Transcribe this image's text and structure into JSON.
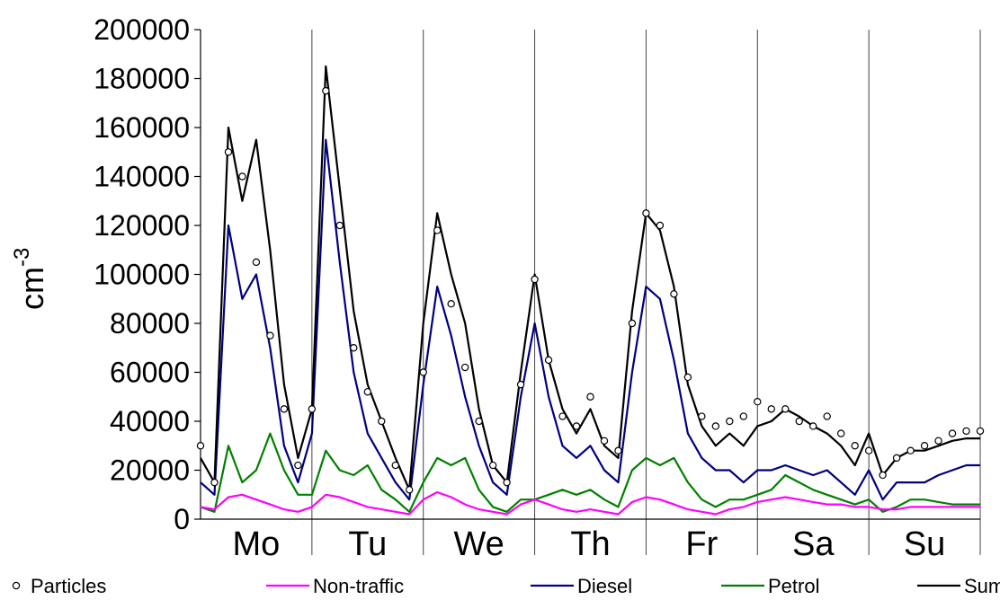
{
  "chart_data": {
    "type": "line",
    "ylabel": "cm",
    "ylabel_exponent": "-3",
    "ylim": [
      0,
      200000
    ],
    "yticks": [
      "0",
      "20000",
      "40000",
      "60000",
      "80000",
      "100000",
      "120000",
      "140000",
      "160000",
      "180000",
      "200000"
    ],
    "xlim": [
      0,
      7
    ],
    "categories": [
      "Mo",
      "Tu",
      "We",
      "Th",
      "Fr",
      "Sa",
      "Su"
    ],
    "grid": "vertical day separators",
    "legend_position": "bottom",
    "x": [
      0,
      0.125,
      0.25,
      0.375,
      0.5,
      0.625,
      0.75,
      0.875,
      1,
      1.125,
      1.25,
      1.375,
      1.5,
      1.625,
      1.75,
      1.875,
      2,
      2.125,
      2.25,
      2.375,
      2.5,
      2.625,
      2.75,
      2.875,
      3,
      3.125,
      3.25,
      3.375,
      3.5,
      3.625,
      3.75,
      3.875,
      4,
      4.125,
      4.25,
      4.375,
      4.5,
      4.625,
      4.75,
      4.875,
      5,
      5.125,
      5.25,
      5.375,
      5.5,
      5.625,
      5.75,
      5.875,
      6,
      6.125,
      6.25,
      6.375,
      6.5,
      6.625,
      6.75,
      6.875,
      7
    ],
    "series": [
      {
        "name": "Particles",
        "style": "markers",
        "color": "#000000",
        "values": [
          30000,
          15000,
          150000,
          140000,
          105000,
          75000,
          45000,
          22000,
          45000,
          175000,
          120000,
          70000,
          52000,
          40000,
          22000,
          12000,
          60000,
          118000,
          88000,
          62000,
          40000,
          22000,
          15000,
          55000,
          98000,
          65000,
          42000,
          38000,
          50000,
          32000,
          28000,
          80000,
          125000,
          120000,
          92000,
          58000,
          42000,
          38000,
          40000,
          42000,
          48000,
          45000,
          45000,
          40000,
          38000,
          42000,
          35000,
          30000,
          28000,
          18000,
          25000,
          28000,
          30000,
          32000,
          35000,
          36000,
          36000
        ]
      },
      {
        "name": "Non-traffic",
        "style": "line",
        "color": "#ff00ff",
        "values": [
          5000,
          4000,
          9000,
          10000,
          8000,
          6000,
          4000,
          3000,
          5000,
          10000,
          9000,
          7000,
          5000,
          4000,
          3000,
          2000,
          8000,
          11000,
          9000,
          6000,
          4000,
          3000,
          2000,
          6000,
          8000,
          6000,
          4000,
          3000,
          4000,
          3000,
          2000,
          7000,
          9000,
          8000,
          6000,
          4000,
          3000,
          2000,
          4000,
          5000,
          7000,
          8000,
          9000,
          8000,
          7000,
          6000,
          6000,
          5000,
          5000,
          4000,
          4000,
          5000,
          5000,
          5000,
          5000,
          5000,
          5000
        ]
      },
      {
        "name": "Diesel",
        "style": "line",
        "color": "#000080",
        "values": [
          15000,
          10000,
          120000,
          90000,
          100000,
          70000,
          30000,
          15000,
          35000,
          155000,
          105000,
          60000,
          35000,
          25000,
          15000,
          8000,
          55000,
          95000,
          75000,
          50000,
          30000,
          15000,
          10000,
          50000,
          80000,
          50000,
          30000,
          25000,
          30000,
          20000,
          15000,
          60000,
          95000,
          90000,
          65000,
          35000,
          25000,
          20000,
          20000,
          15000,
          20000,
          20000,
          22000,
          20000,
          18000,
          20000,
          15000,
          10000,
          20000,
          8000,
          15000,
          15000,
          15000,
          18000,
          20000,
          22000,
          22000
        ]
      },
      {
        "name": "Petrol",
        "style": "line",
        "color": "#008000",
        "values": [
          5000,
          3000,
          30000,
          15000,
          20000,
          35000,
          20000,
          10000,
          10000,
          28000,
          20000,
          18000,
          22000,
          12000,
          8000,
          3000,
          15000,
          25000,
          22000,
          25000,
          12000,
          5000,
          3000,
          8000,
          8000,
          10000,
          12000,
          10000,
          12000,
          8000,
          5000,
          20000,
          25000,
          22000,
          25000,
          15000,
          8000,
          5000,
          8000,
          8000,
          10000,
          12000,
          18000,
          15000,
          12000,
          10000,
          8000,
          6000,
          8000,
          3000,
          5000,
          8000,
          8000,
          7000,
          6000,
          6000,
          6000
        ]
      },
      {
        "name": "Sum",
        "style": "line",
        "color": "#000000",
        "values": [
          25000,
          15000,
          160000,
          130000,
          155000,
          110000,
          55000,
          25000,
          45000,
          185000,
          135000,
          85000,
          55000,
          40000,
          25000,
          12000,
          80000,
          125000,
          100000,
          80000,
          45000,
          22000,
          15000,
          60000,
          100000,
          65000,
          45000,
          35000,
          45000,
          30000,
          25000,
          85000,
          125000,
          118000,
          95000,
          55000,
          38000,
          30000,
          35000,
          30000,
          38000,
          40000,
          45000,
          42000,
          38000,
          35000,
          30000,
          22000,
          35000,
          18000,
          25000,
          28000,
          28000,
          30000,
          32000,
          33000,
          33000
        ]
      }
    ]
  }
}
